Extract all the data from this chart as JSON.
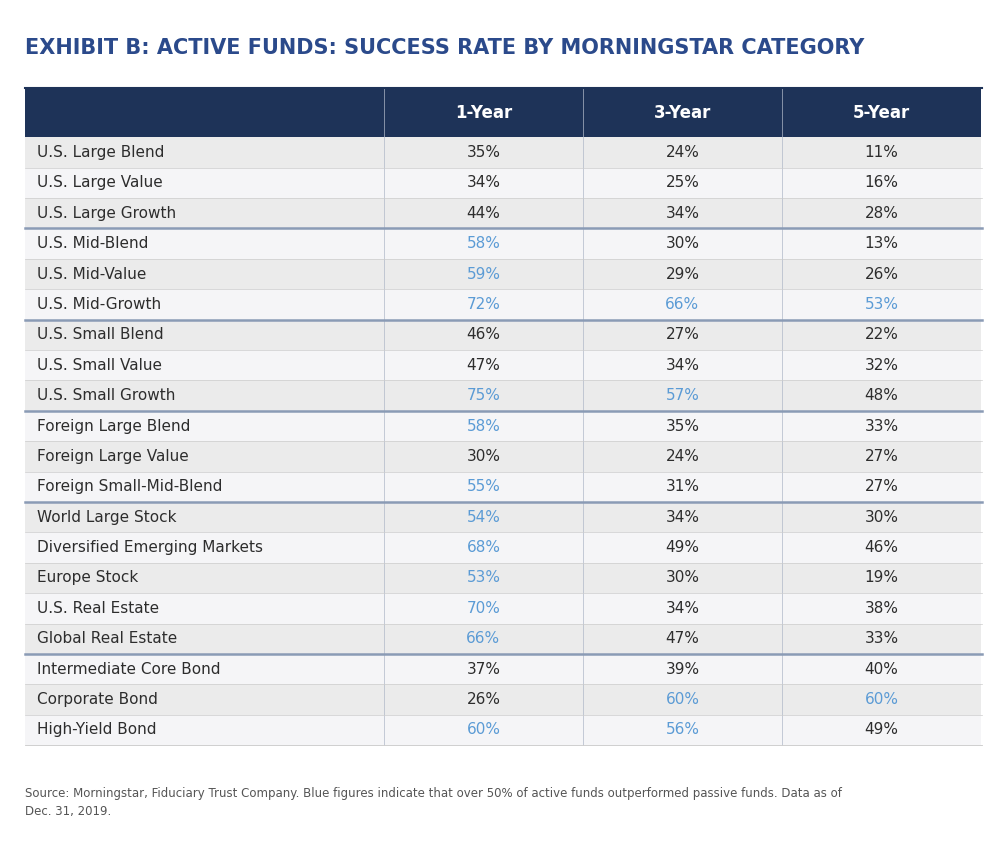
{
  "title": "EXHIBIT B: ACTIVE FUNDS: SUCCESS RATE BY MORNINGSTAR CATEGORY",
  "title_color": "#2b4a8b",
  "header_bg_color": "#1e3358",
  "header_text_color": "#ffffff",
  "col_headers": [
    "1-Year",
    "3-Year",
    "5-Year"
  ],
  "blue_color": "#5b9bd5",
  "dark_color": "#2d2d2d",
  "alt_color1": "#ebebeb",
  "alt_color2": "#f5f5f7",
  "separator_thick_color": "#8a9bb5",
  "separator_thin_color": "#cccccc",
  "categories": [
    "U.S. Large Blend",
    "U.S. Large Value",
    "U.S. Large Growth",
    "U.S. Mid-Blend",
    "U.S. Mid-Value",
    "U.S. Mid-Growth",
    "U.S. Small Blend",
    "U.S. Small Value",
    "U.S. Small Growth",
    "Foreign Large Blend",
    "Foreign Large Value",
    "Foreign Small-Mid-Blend",
    "World Large Stock",
    "Diversified Emerging Markets",
    "Europe Stock",
    "U.S. Real Estate",
    "Global Real Estate",
    "Intermediate Core Bond",
    "Corporate Bond",
    "High-Yield Bond"
  ],
  "values": [
    [
      "35%",
      "24%",
      "11%"
    ],
    [
      "34%",
      "25%",
      "16%"
    ],
    [
      "44%",
      "34%",
      "28%"
    ],
    [
      "58%",
      "30%",
      "13%"
    ],
    [
      "59%",
      "29%",
      "26%"
    ],
    [
      "72%",
      "66%",
      "53%"
    ],
    [
      "46%",
      "27%",
      "22%"
    ],
    [
      "47%",
      "34%",
      "32%"
    ],
    [
      "75%",
      "57%",
      "48%"
    ],
    [
      "58%",
      "35%",
      "33%"
    ],
    [
      "30%",
      "24%",
      "27%"
    ],
    [
      "55%",
      "31%",
      "27%"
    ],
    [
      "54%",
      "34%",
      "30%"
    ],
    [
      "68%",
      "49%",
      "46%"
    ],
    [
      "53%",
      "30%",
      "19%"
    ],
    [
      "70%",
      "34%",
      "38%"
    ],
    [
      "66%",
      "47%",
      "33%"
    ],
    [
      "37%",
      "39%",
      "40%"
    ],
    [
      "26%",
      "60%",
      "60%"
    ],
    [
      "60%",
      "56%",
      "49%"
    ]
  ],
  "is_blue": [
    [
      false,
      false,
      false
    ],
    [
      false,
      false,
      false
    ],
    [
      false,
      false,
      false
    ],
    [
      true,
      false,
      false
    ],
    [
      true,
      false,
      false
    ],
    [
      true,
      true,
      true
    ],
    [
      false,
      false,
      false
    ],
    [
      false,
      false,
      false
    ],
    [
      true,
      true,
      false
    ],
    [
      true,
      false,
      false
    ],
    [
      false,
      false,
      false
    ],
    [
      true,
      false,
      false
    ],
    [
      true,
      false,
      false
    ],
    [
      true,
      false,
      false
    ],
    [
      true,
      false,
      false
    ],
    [
      true,
      false,
      false
    ],
    [
      true,
      false,
      false
    ],
    [
      false,
      false,
      false
    ],
    [
      false,
      true,
      true
    ],
    [
      true,
      true,
      false
    ]
  ],
  "group_separators_after": [
    2,
    5,
    8,
    11,
    16
  ],
  "footnote": "Source: Morningstar, Fiduciary Trust Company. Blue figures indicate that over 50% of active funds outperformed passive funds. Data as of\nDec. 31, 2019."
}
